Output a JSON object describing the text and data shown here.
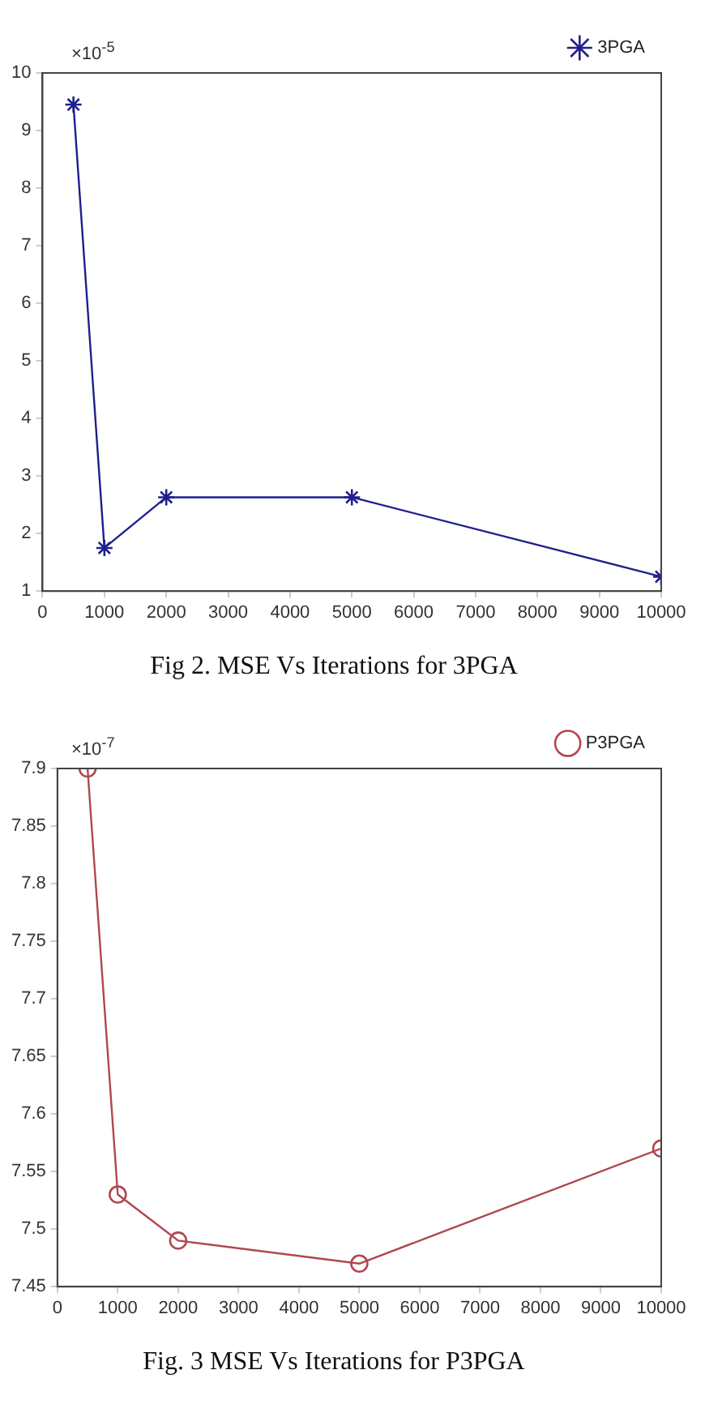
{
  "chart_data": [
    {
      "type": "line",
      "title": "Fig 2. MSE Vs Iterations for 3PGA",
      "annotations": [
        "×10$^{-5}$"
      ],
      "x": [
        500,
        1000,
        2000,
        5000,
        10000
      ],
      "series": [
        {
          "name": "3PGA",
          "color": "#1f1f8c",
          "values": [
            9.45,
            1.75,
            2.63,
            2.63,
            1.25
          ]
        }
      ],
      "xlim": [
        0,
        10000
      ],
      "xticks": [
        0,
        1000,
        2000,
        3000,
        4000,
        5000,
        6000,
        7000,
        8000,
        9000,
        10000
      ],
      "ylim": [
        1,
        10
      ],
      "yticks": [
        1,
        2,
        3,
        4,
        5,
        6,
        7,
        8,
        9,
        10
      ],
      "grid": false,
      "legend": "top right",
      "marker": "cross",
      "line_style": "solid"
    },
    {
      "type": "line",
      "title": "Fig. 3 MSE Vs Iterations for P3PGA",
      "annotations": [
        "×10$^{-7}$"
      ],
      "x": [
        500,
        1000,
        2000,
        5000,
        10000
      ],
      "series": [
        {
          "name": "P3PGA",
          "color": "#b0474f",
          "values": [
            7.9,
            7.53,
            7.49,
            7.47,
            7.57
          ]
        }
      ],
      "xlim": [
        0,
        10000
      ],
      "xticks": [
        0,
        1000,
        2000,
        3000,
        4000,
        5000,
        6000,
        7000,
        8000,
        9000,
        10000
      ],
      "ylim": [
        7.45,
        7.9
      ],
      "yticks": [
        7.45,
        7.5,
        7.55,
        7.6,
        7.65,
        7.7,
        7.75,
        7.8,
        7.85,
        7.9
      ],
      "grid": false,
      "legend": "top right",
      "marker": "circle",
      "line_style": "solid"
    }
  ]
}
